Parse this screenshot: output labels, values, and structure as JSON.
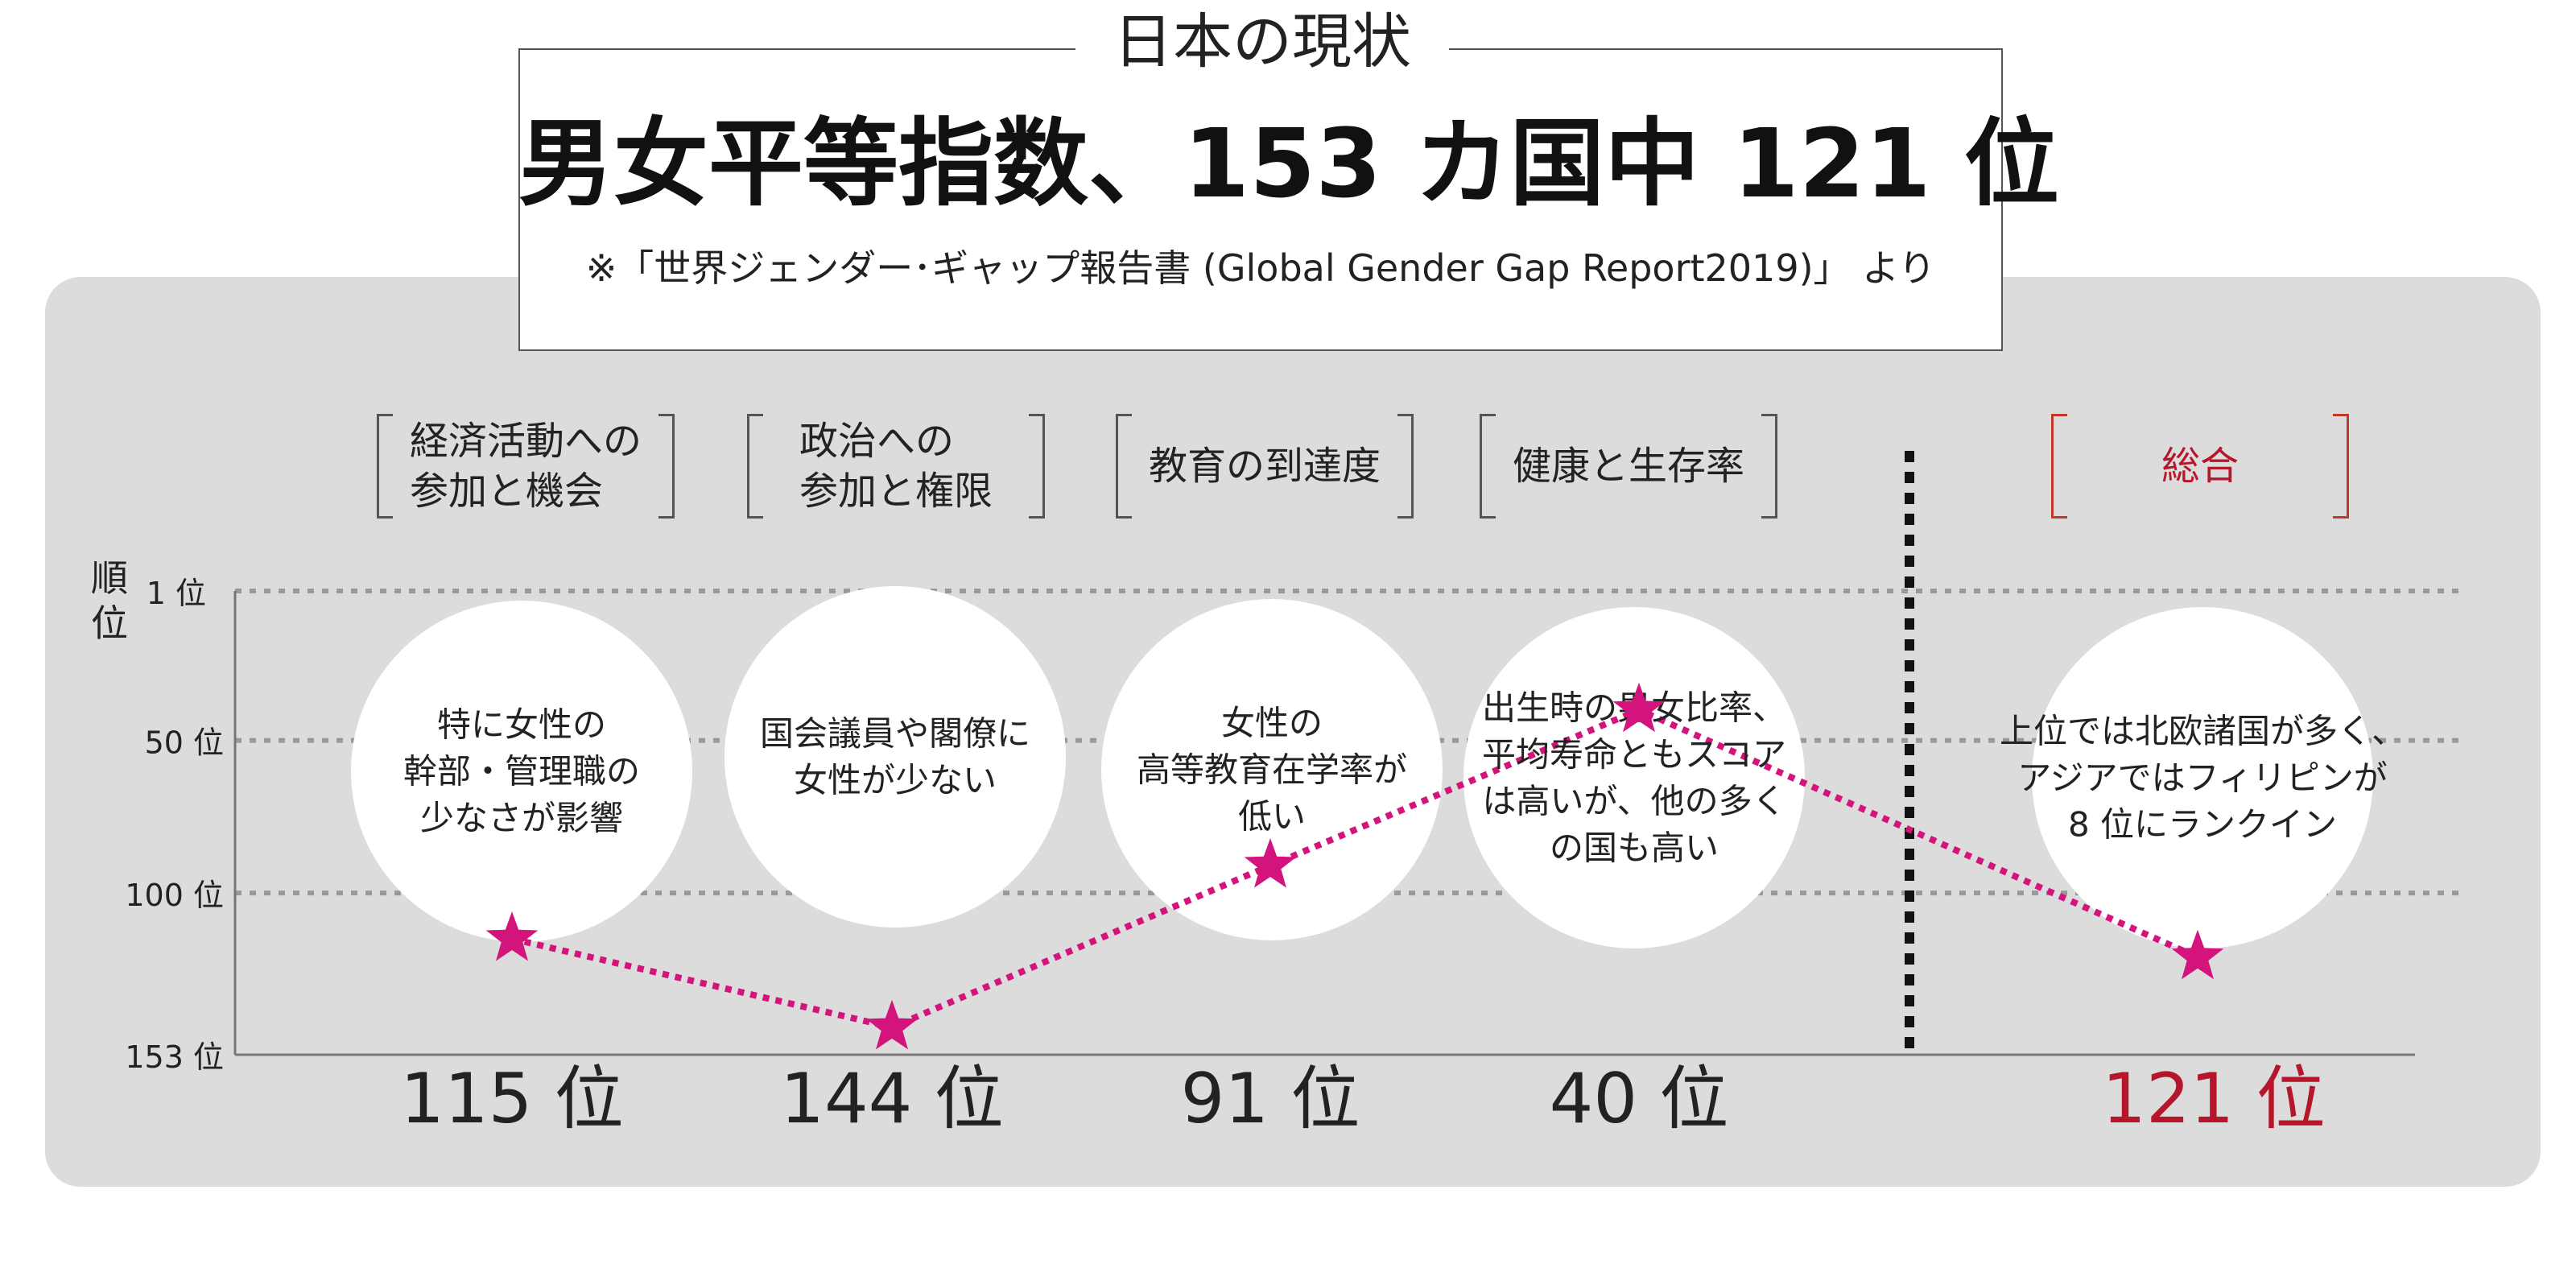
{
  "header": {
    "label": "日本の現状",
    "headline": "男女平等指数、153 カ国中 121 位",
    "source": "※「世界ジェンダー･ギャップ報告書 (Global Gender Gap Report2019)」 より"
  },
  "colors": {
    "panel": "#dcdcdc",
    "accent": "#d4147d",
    "overall": "#b5162a",
    "gridline": "#999999"
  },
  "chart_data": {
    "type": "line",
    "ylabel": "順位",
    "y_reversed": true,
    "ylim": [
      1,
      153
    ],
    "y_ticks": [
      {
        "value": 1,
        "label": "1 位"
      },
      {
        "value": 50,
        "label": "50 位"
      },
      {
        "value": 100,
        "label": "100 位"
      },
      {
        "value": 153,
        "label": "153 位"
      }
    ],
    "grid": true,
    "categories": [
      {
        "label": "経済活動への\n参加と機会",
        "rank": 115,
        "rank_label": "115 位",
        "note": "特に女性の\n幹部・管理職の\n少なさが影響"
      },
      {
        "label": "政治への\n参加と権限",
        "rank": 144,
        "rank_label": "144 位",
        "note": "国会議員や閣僚に\n女性が少ない"
      },
      {
        "label": "教育の到達度",
        "rank": 91,
        "rank_label": "91 位",
        "note": "女性の\n高等教育在学率が\n低い"
      },
      {
        "label": "健康と生存率",
        "rank": 40,
        "rank_label": "40 位",
        "note": "出生時の男女比率、\n平均寿命ともスコア\nは高いが、他の多く\nの国も高い"
      }
    ],
    "overall": {
      "label": "総合",
      "rank": 121,
      "rank_label": "121 位",
      "note": "上位では北欧諸国が多く、\nアジアではフィリピンが\n8 位にランクイン"
    }
  }
}
